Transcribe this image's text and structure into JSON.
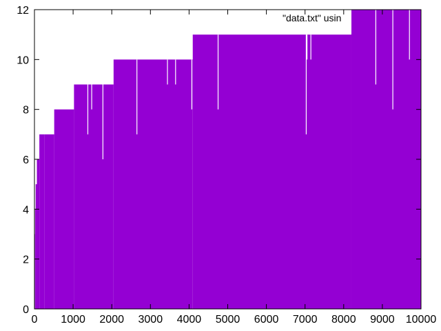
{
  "chart_data": {
    "type": "bar",
    "title": "",
    "xlabel": "",
    "ylabel": "",
    "xlim": [
      0,
      10000
    ],
    "ylim": [
      0,
      12
    ],
    "x_ticks": [
      0,
      1000,
      2000,
      3000,
      4000,
      5000,
      6000,
      7000,
      8000,
      9000,
      10000
    ],
    "y_ticks": [
      0,
      2,
      4,
      6,
      8,
      10,
      12
    ],
    "grid": false,
    "legend": {
      "label": "\"data.txt\" usin",
      "placement": "top-right"
    },
    "color": "#9400d3",
    "series": [
      {
        "name": "\"data.txt\" using ...",
        "steps": [
          {
            "x_start": 0,
            "x_end": 15,
            "value": 3
          },
          {
            "x_start": 15,
            "x_end": 31,
            "value": 4
          },
          {
            "x_start": 31,
            "x_end": 63,
            "value": 5
          },
          {
            "x_start": 63,
            "x_end": 127,
            "value": 6
          },
          {
            "x_start": 127,
            "x_end": 255,
            "value": 7
          },
          {
            "x_start": 255,
            "x_end": 511,
            "value": 7
          },
          {
            "x_start": 511,
            "x_end": 1023,
            "value": 8
          },
          {
            "x_start": 1023,
            "x_end": 2047,
            "value": 9
          },
          {
            "x_start": 2047,
            "x_end": 4095,
            "value": 10
          },
          {
            "x_start": 4095,
            "x_end": 8191,
            "value": 11
          },
          {
            "x_start": 8191,
            "x_end": 10000,
            "value": 12
          }
        ],
        "dips": [
          {
            "x": 1370,
            "value": 7
          },
          {
            "x": 1470,
            "value": 8
          },
          {
            "x": 1760,
            "value": 6
          },
          {
            "x": 2640,
            "value": 7
          },
          {
            "x": 3430,
            "value": 9
          },
          {
            "x": 3640,
            "value": 9
          },
          {
            "x": 4060,
            "value": 8
          },
          {
            "x": 4700,
            "value": 11
          },
          {
            "x": 4740,
            "value": 8
          },
          {
            "x": 7020,
            "value": 7
          },
          {
            "x": 7040,
            "value": 10
          },
          {
            "x": 7140,
            "value": 10
          },
          {
            "x": 7860,
            "value": 11
          },
          {
            "x": 7980,
            "value": 11
          },
          {
            "x": 8820,
            "value": 9
          },
          {
            "x": 9260,
            "value": 8
          },
          {
            "x": 9690,
            "value": 10
          }
        ]
      }
    ]
  }
}
